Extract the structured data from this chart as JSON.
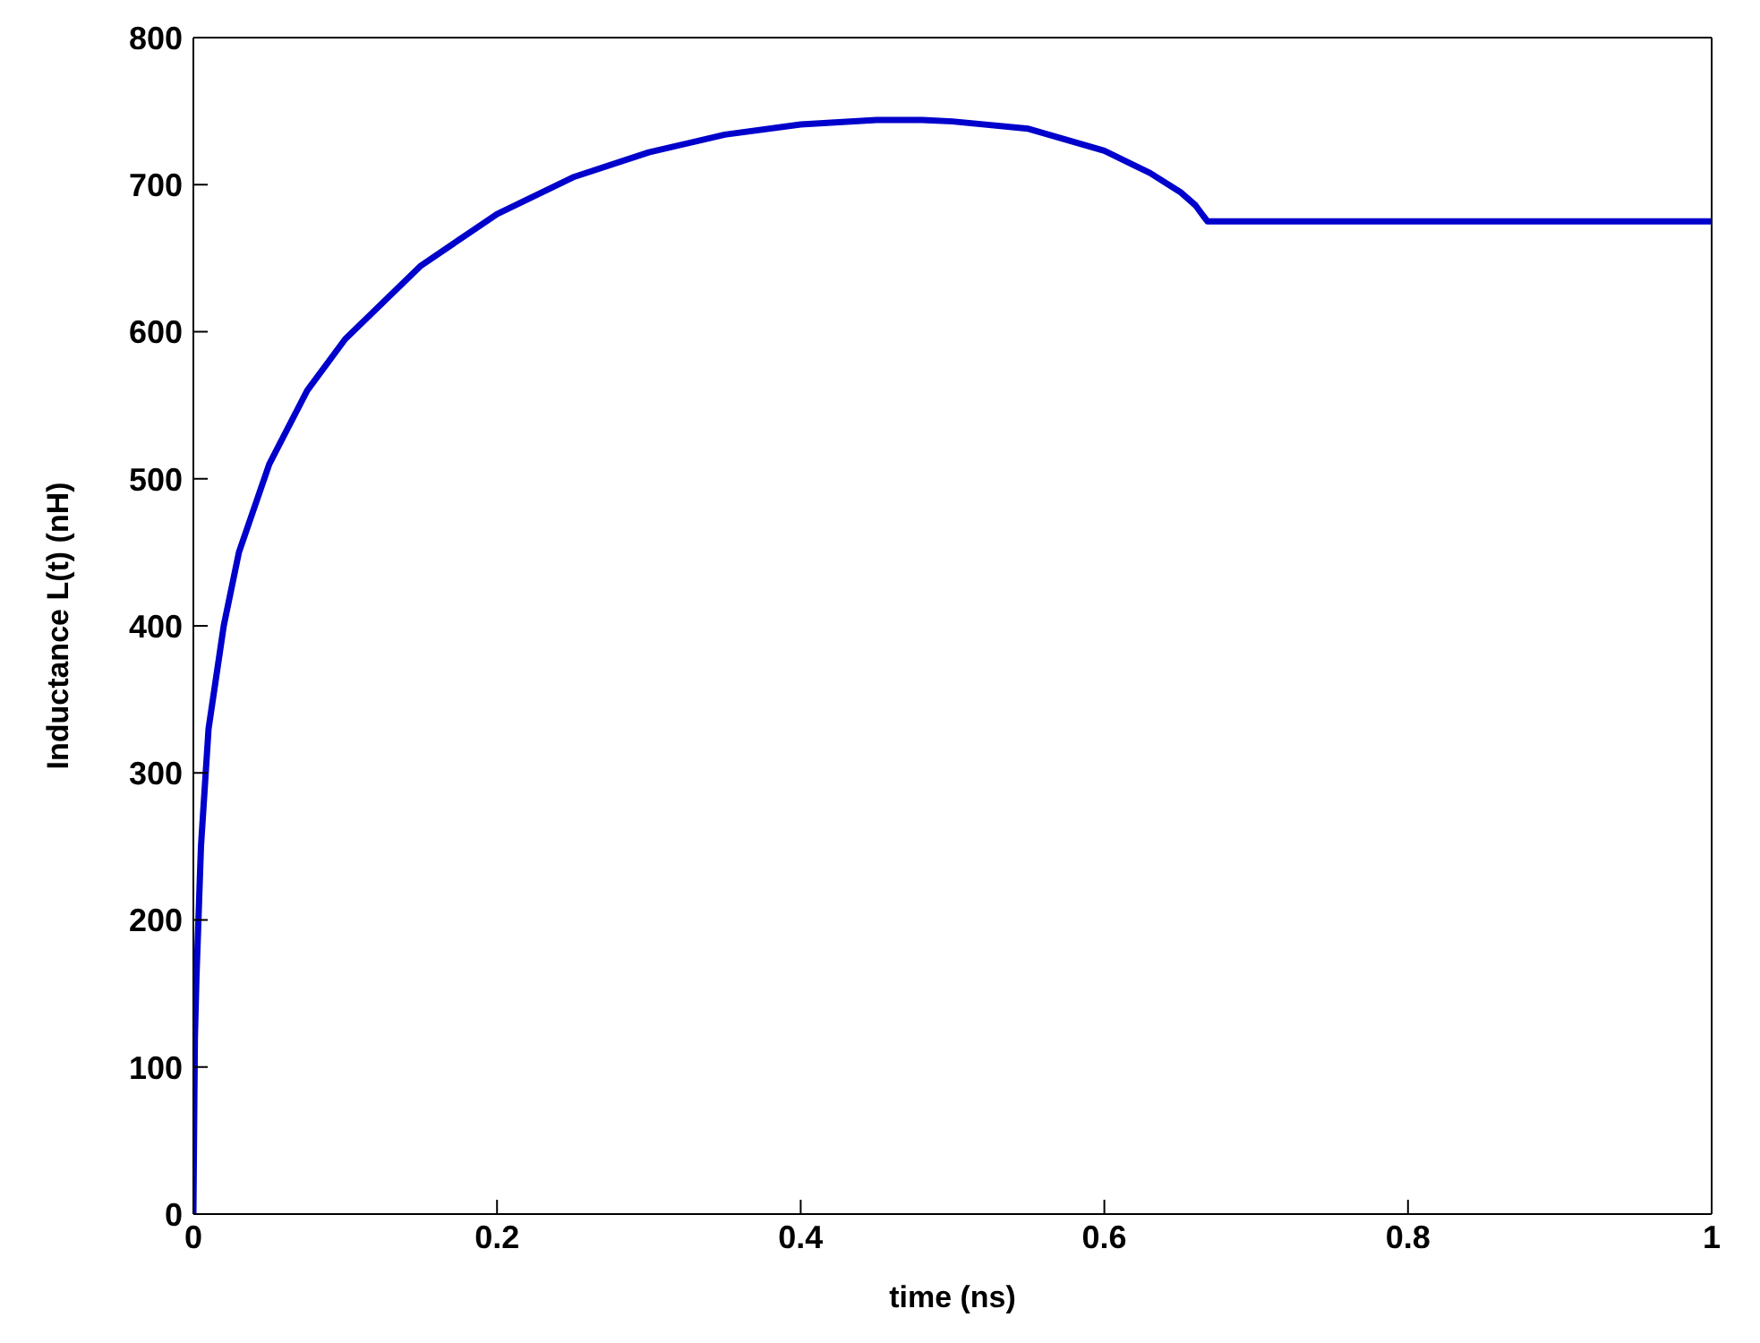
{
  "chart_data": {
    "type": "line",
    "xlabel": "time (ns)",
    "ylabel": "Inductance L(t) (nH)",
    "x": [
      0,
      0.001,
      0.002,
      0.005,
      0.01,
      0.02,
      0.03,
      0.05,
      0.075,
      0.1,
      0.15,
      0.2,
      0.25,
      0.3,
      0.35,
      0.4,
      0.45,
      0.48,
      0.5,
      0.55,
      0.6,
      0.63,
      0.65,
      0.66,
      0.665,
      0.668,
      0.7,
      0.8,
      0.9,
      1
    ],
    "series": [
      {
        "color": "#0000cc",
        "values": [
          0,
          120,
          160,
          250,
          330,
          400,
          450,
          510,
          560,
          595,
          645,
          680,
          705,
          722,
          734,
          741,
          744,
          744,
          743,
          738,
          723,
          708,
          695,
          686,
          679,
          675,
          675,
          675,
          675,
          675
        ]
      }
    ],
    "xlim": [
      0,
      1
    ],
    "ylim": [
      0,
      800
    ],
    "xticks": [
      0,
      0.2,
      0.4,
      0.6,
      0.8,
      1
    ],
    "yticks": [
      0,
      100,
      200,
      300,
      400,
      500,
      600,
      700,
      800
    ],
    "grid": false,
    "legend": false,
    "marker": "none",
    "line_style": "solid"
  }
}
